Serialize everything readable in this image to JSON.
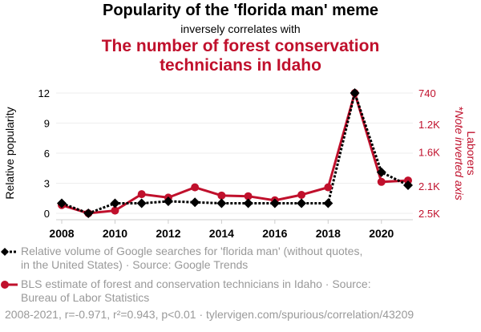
{
  "chart_data": {
    "type": "line",
    "title": "Popularity of the 'florida man' meme",
    "subtitle": "inversely correlates with",
    "title2": "The number of forest conservation technicians in Idaho",
    "x": [
      2008,
      2009,
      2010,
      2011,
      2012,
      2013,
      2014,
      2015,
      2016,
      2017,
      2018,
      2019,
      2020,
      2021
    ],
    "xticks": [
      "2008",
      "2010",
      "2012",
      "2014",
      "2016",
      "2018",
      "2020"
    ],
    "ylabel": "Relative popularity",
    "ylim": [
      0,
      12
    ],
    "yticks": [
      "0",
      "3",
      "6",
      "9",
      "12"
    ],
    "y2label": "Laborers",
    "y2note": "*Note inverted axis",
    "y2lim": [
      740,
      2500
    ],
    "y2ticks": [
      {
        "v": 740,
        "label": "740"
      },
      {
        "v": 1200,
        "label": "1.2K"
      },
      {
        "v": 1600,
        "label": "1.6K"
      },
      {
        "v": 2100,
        "label": "2.1K"
      },
      {
        "v": 2500,
        "label": "2.5K"
      }
    ],
    "series": [
      {
        "name": "Relative volume of Google searches for 'florida man' (without quotes, in the United States) · Source: Google Trends",
        "color": "#000000",
        "axis": "left",
        "values": [
          1,
          0,
          1,
          1,
          1.2,
          1.1,
          1,
          1,
          1,
          1,
          1,
          12,
          4.1,
          2.8
        ]
      },
      {
        "name": "BLS estimate of forest and conservation technicians in Idaho · Source: Bureau of Labor Statistics",
        "color": "#c0102c",
        "axis": "right",
        "values": [
          2380,
          2500,
          2460,
          2220,
          2270,
          2120,
          2240,
          2250,
          2310,
          2230,
          2120,
          740,
          2040,
          2020
        ]
      }
    ],
    "legend": [
      "Relative volume of Google searches for 'florida man' (without quotes,",
      "in the United States) · Source: Google Trends",
      "BLS estimate of forest and conservation technicians in Idaho · Source:",
      "Bureau of Labor Statistics"
    ],
    "footer": "2008-2021, r=-0.971, r²=0.943, p<0.01 · tylervigen.com/spurious/correlation/43209"
  }
}
